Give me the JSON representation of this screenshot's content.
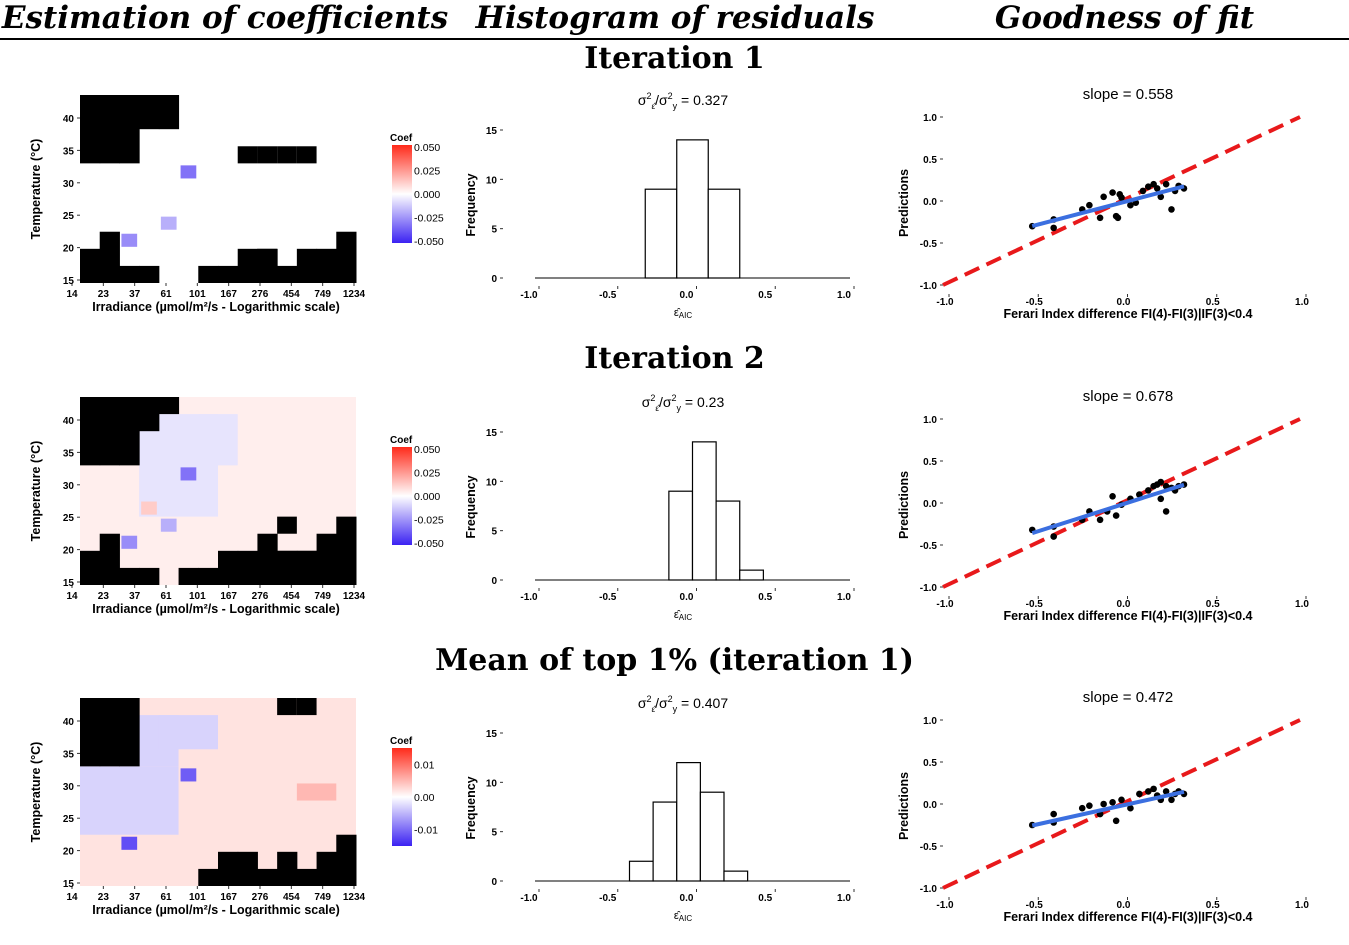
{
  "headers": [
    "Estimation of coefficients",
    "Histogram of residuals",
    "Goodness of fit"
  ],
  "colors": {
    "neg": "#3b22f2",
    "pos": "#ff2a1a",
    "zero": "#ffffff",
    "masked": "#000000",
    "fit_line": "#3b6fe0",
    "ref_line": "#e8191b",
    "points": "#000000",
    "points_on_line": "#ff2020"
  },
  "rows": [
    {
      "title": "Iteration 1",
      "heatmap": {
        "ylabel": "Temperature (°C)",
        "xlabel": "Irradiance (µmol/m²/s - Logarithmic scale)",
        "xticks": [
          "14",
          "23",
          "37",
          "61",
          "101",
          "167",
          "276",
          "454",
          "749",
          "1234"
        ],
        "yticks": [
          "15",
          "20",
          "25",
          "30",
          "35",
          "40"
        ],
        "legend_title": "Coef",
        "legend_ticks": [
          "0.050",
          "0.025",
          "0.000",
          "-0.025",
          "-0.050"
        ],
        "legend_range": [
          -0.05,
          0.05
        ],
        "cols": 14,
        "rows": 11,
        "mask_top": [
          4,
          4,
          4,
          2,
          2,
          0,
          0,
          0,
          0,
          0,
          0,
          0,
          0,
          0
        ],
        "mask_bottom": [
          2,
          3,
          1,
          1,
          0,
          0,
          1,
          1,
          2,
          2,
          1,
          2,
          2,
          3
        ],
        "extra_masked": [
          [
            8,
            7
          ],
          [
            9,
            7
          ],
          [
            10,
            7
          ],
          [
            11,
            7
          ],
          [
            9,
            1
          ]
        ],
        "cells": [
          [
            5,
            6,
            -0.032
          ],
          [
            4,
            3,
            -0.018
          ],
          [
            2,
            2,
            -0.026
          ]
        ]
      },
      "histogram": {
        "title": "σ²ε̂/σ²y = 0.327",
        "title_prefix": "σ",
        "title_value": " = 0.327",
        "ylabel": "Frequency",
        "xlabel": "ε̂AIC",
        "xlim": [
          -1.0,
          1.0
        ],
        "xticks": [
          "-1.0",
          "-0.5",
          "0.0",
          "0.5",
          "1.0"
        ],
        "ylim": [
          0,
          15
        ],
        "yticks": [
          "0",
          "5",
          "10",
          "15"
        ],
        "bins": [
          [
            -0.3,
            -0.1,
            9
          ],
          [
            -0.1,
            0.1,
            14
          ],
          [
            0.1,
            0.3,
            9
          ]
        ]
      },
      "fit": {
        "title": "slope =  0.558",
        "ylabel": "Predictions",
        "xlabel": "Ferari Index difference FI(4)-FI(3)|IF(3)<0.4",
        "xlim": [
          -1.0,
          1.0
        ],
        "xticks": [
          "-1.0",
          "-0.5",
          "0.0",
          "0.5",
          "1.0"
        ],
        "ylim": [
          -1.0,
          1.0
        ],
        "yticks": [
          "-1.0",
          "-0.5",
          "0.0",
          "0.5",
          "1.0"
        ],
        "slope": 0.558,
        "intercept": -0.02,
        "fit_x": [
          -0.5,
          0.35
        ],
        "points": [
          [
            -0.5,
            -0.3
          ],
          [
            -0.38,
            -0.32
          ],
          [
            -0.38,
            -0.22
          ],
          [
            -0.22,
            -0.1
          ],
          [
            -0.18,
            -0.05
          ],
          [
            -0.12,
            -0.2
          ],
          [
            -0.1,
            0.05
          ],
          [
            -0.05,
            0.1
          ],
          [
            -0.03,
            -0.18
          ],
          [
            -0.02,
            -0.2
          ],
          [
            -0.01,
            0.08
          ],
          [
            0.0,
            0.04
          ],
          [
            0.05,
            -0.05
          ],
          [
            0.08,
            -0.02
          ],
          [
            0.12,
            0.12
          ],
          [
            0.15,
            0.17
          ],
          [
            0.18,
            0.2
          ],
          [
            0.2,
            0.15
          ],
          [
            0.22,
            0.05
          ],
          [
            0.25,
            0.2
          ],
          [
            0.28,
            -0.1
          ],
          [
            0.3,
            0.12
          ],
          [
            0.32,
            0.18
          ],
          [
            0.35,
            0.15
          ]
        ]
      }
    },
    {
      "title": "Iteration 2",
      "heatmap": {
        "ylabel": "Temperature (°C)",
        "xlabel": "Irradiance (µmol/m²/s - Logarithmic scale)",
        "xticks": [
          "14",
          "23",
          "37",
          "61",
          "101",
          "167",
          "276",
          "454",
          "749",
          "1234"
        ],
        "yticks": [
          "15",
          "20",
          "25",
          "30",
          "35",
          "40"
        ],
        "legend_title": "Coef",
        "legend_ticks": [
          "0.050",
          "0.025",
          "0.000",
          "-0.025",
          "-0.050"
        ],
        "legend_range": [
          -0.05,
          0.05
        ],
        "cols": 14,
        "rows": 11,
        "mask_top": [
          4,
          4,
          4,
          2,
          1,
          0,
          0,
          0,
          0,
          0,
          0,
          0,
          0,
          0
        ],
        "mask_bottom": [
          2,
          3,
          1,
          1,
          0,
          1,
          1,
          2,
          2,
          3,
          2,
          2,
          3,
          4
        ],
        "extra_masked": [
          [
            9,
            1
          ],
          [
            10,
            1
          ],
          [
            11,
            1
          ],
          [
            12,
            1
          ],
          [
            10,
            3
          ],
          [
            13,
            0
          ]
        ],
        "cells": [
          [
            5,
            6,
            -0.032
          ],
          [
            4,
            3,
            -0.018
          ],
          [
            2,
            2,
            -0.026
          ],
          [
            3,
            4,
            0.012
          ]
        ],
        "bg_coef": 0.004,
        "region_neg": [
          [
            3,
            4,
            7,
            10
          ],
          [
            6,
            7,
            8,
            10
          ]
        ],
        "region_neg_value": -0.006
      },
      "histogram": {
        "title": "σ²ε̂/σ²y = 0.23",
        "title_prefix": "σ",
        "title_value": " = 0.23",
        "ylabel": "Frequency",
        "xlabel": "ε̂AIC",
        "xlim": [
          -1.0,
          1.0
        ],
        "xticks": [
          "-1.0",
          "-0.5",
          "0.0",
          "0.5",
          "1.0"
        ],
        "ylim": [
          0,
          15
        ],
        "yticks": [
          "0",
          "5",
          "10",
          "15"
        ],
        "bins": [
          [
            -0.15,
            0.0,
            9
          ],
          [
            0.0,
            0.15,
            14
          ],
          [
            0.15,
            0.3,
            8
          ],
          [
            0.3,
            0.45,
            1
          ]
        ]
      },
      "fit": {
        "title": "slope =  0.678",
        "ylabel": "Predictions",
        "xlabel": "Ferari Index difference FI(4)-FI(3)|IF(3)<0.4",
        "xlim": [
          -1.0,
          1.0
        ],
        "xticks": [
          "-1.0",
          "-0.5",
          "0.0",
          "0.5",
          "1.0"
        ],
        "ylim": [
          -1.0,
          1.0
        ],
        "yticks": [
          "-1.0",
          "-0.5",
          "0.0",
          "0.5",
          "1.0"
        ],
        "slope": 0.678,
        "intercept": -0.02,
        "fit_x": [
          -0.5,
          0.35
        ],
        "points": [
          [
            -0.5,
            -0.32
          ],
          [
            -0.38,
            -0.28
          ],
          [
            -0.38,
            -0.4
          ],
          [
            -0.22,
            -0.2
          ],
          [
            -0.18,
            -0.1
          ],
          [
            -0.12,
            -0.2
          ],
          [
            -0.08,
            -0.1
          ],
          [
            -0.05,
            0.08
          ],
          [
            -0.03,
            -0.15
          ],
          [
            0.0,
            -0.02
          ],
          [
            0.05,
            0.05
          ],
          [
            0.1,
            0.1
          ],
          [
            0.15,
            0.15
          ],
          [
            0.18,
            0.2
          ],
          [
            0.2,
            0.22
          ],
          [
            0.22,
            0.25
          ],
          [
            0.22,
            0.05
          ],
          [
            0.25,
            0.2
          ],
          [
            0.25,
            -0.1
          ],
          [
            0.28,
            0.18
          ],
          [
            0.3,
            0.15
          ],
          [
            0.32,
            0.2
          ],
          [
            0.35,
            0.22
          ]
        ]
      }
    },
    {
      "title": "Mean of top 1% (iteration 1)",
      "heatmap": {
        "ylabel": "Temperature (°C)",
        "xlabel": "Irradiance (µmol/m²/s - Logarithmic scale)",
        "xticks": [
          "14",
          "23",
          "37",
          "61",
          "101",
          "167",
          "276",
          "454",
          "749",
          "1234"
        ],
        "yticks": [
          "15",
          "20",
          "25",
          "30",
          "35",
          "40"
        ],
        "legend_title": "Coef",
        "legend_ticks": [
          "0.01",
          "0.00",
          "-0.01"
        ],
        "legend_range": [
          -0.015,
          0.015
        ],
        "cols": 14,
        "rows": 11,
        "mask_top": [
          4,
          4,
          4,
          0,
          0,
          0,
          0,
          0,
          0,
          0,
          0,
          0,
          0,
          0
        ],
        "mask_bottom": [
          0,
          0,
          0,
          0,
          0,
          0,
          1,
          2,
          2,
          1,
          2,
          1,
          2,
          3
        ],
        "extra_masked": [
          [
            11,
            10
          ],
          [
            10,
            10
          ]
        ],
        "cells": [
          [
            5,
            6,
            -0.011
          ],
          [
            2,
            2,
            -0.012
          ]
        ],
        "bg_coef": 0.002,
        "region_neg": [
          [
            0,
            3,
            5,
            7
          ],
          [
            3,
            7,
            5,
            10
          ],
          [
            4,
            8,
            7,
            10
          ]
        ],
        "region_neg_value": -0.003,
        "region_pos": [
          [
            11,
            5,
            13,
            6
          ]
        ],
        "region_pos_value": 0.005
      },
      "histogram": {
        "title": "σ²ε̂/σ²y = 0.407",
        "title_prefix": "σ",
        "title_value": " = 0.407",
        "ylabel": "Frequency",
        "xlabel": "ε̂AIC",
        "xlim": [
          -1.0,
          1.0
        ],
        "xticks": [
          "-1.0",
          "-0.5",
          "0.0",
          "0.5",
          "1.0"
        ],
        "ylim": [
          0,
          15
        ],
        "yticks": [
          "0",
          "5",
          "10",
          "15"
        ],
        "bins": [
          [
            -0.4,
            -0.25,
            2
          ],
          [
            -0.25,
            -0.1,
            8
          ],
          [
            -0.1,
            0.05,
            12
          ],
          [
            0.05,
            0.2,
            9
          ],
          [
            0.2,
            0.35,
            1
          ]
        ]
      },
      "fit": {
        "title": "slope =  0.472",
        "ylabel": "Predictions",
        "xlabel": "Ferari Index difference FI(4)-FI(3)|IF(3)<0.4",
        "xlim": [
          -1.0,
          1.0
        ],
        "xticks": [
          "-1.0",
          "-0.5",
          "0.0",
          "0.5",
          "1.0"
        ],
        "ylim": [
          -1.0,
          1.0
        ],
        "yticks": [
          "-1.0",
          "-0.5",
          "0.0",
          "0.5",
          "1.0"
        ],
        "slope": 0.472,
        "intercept": -0.02,
        "fit_x": [
          -0.5,
          0.35
        ],
        "points": [
          [
            -0.5,
            -0.25
          ],
          [
            -0.38,
            -0.12
          ],
          [
            -0.38,
            -0.22
          ],
          [
            -0.22,
            -0.05
          ],
          [
            -0.18,
            -0.02
          ],
          [
            -0.12,
            -0.12
          ],
          [
            -0.1,
            0.0
          ],
          [
            -0.05,
            0.02
          ],
          [
            -0.03,
            -0.2
          ],
          [
            0.0,
            0.05
          ],
          [
            0.05,
            -0.05
          ],
          [
            0.1,
            0.12
          ],
          [
            0.15,
            0.15
          ],
          [
            0.18,
            0.18
          ],
          [
            0.2,
            0.1
          ],
          [
            0.22,
            0.05
          ],
          [
            0.25,
            0.15
          ],
          [
            0.28,
            0.05
          ],
          [
            0.3,
            0.12
          ],
          [
            0.32,
            0.15
          ],
          [
            0.35,
            0.12
          ]
        ]
      }
    }
  ],
  "chart_data": [
    {
      "type": "heatmap",
      "title": "Iteration 1",
      "xlabel": "Irradiance (µmol/m²/s - Logarithmic scale)",
      "ylabel": "Temperature (°C)",
      "x_ticks": [
        "14",
        "23",
        "37",
        "61",
        "101",
        "167",
        "276",
        "454",
        "749",
        "1234"
      ],
      "ylim": [
        15,
        43
      ],
      "legend": "Coef",
      "range": [
        -0.05,
        0.05
      ]
    },
    {
      "type": "bar",
      "title": "σ²ε̂/σ²y = 0.327",
      "xlabel": "ε̂AIC",
      "ylabel": "Frequency",
      "x": [
        -0.2,
        0.0,
        0.2
      ],
      "values": [
        9,
        14,
        9
      ],
      "xlim": [
        -1,
        1
      ],
      "ylim": [
        0,
        15
      ]
    },
    {
      "type": "scatter",
      "title": "slope =  0.558",
      "xlabel": "Ferari Index difference FI(4)-FI(3)|IF(3)<0.4",
      "ylabel": "Predictions",
      "xlim": [
        -1,
        1
      ],
      "ylim": [
        -1,
        1
      ]
    },
    {
      "type": "heatmap",
      "title": "Iteration 2",
      "xlabel": "Irradiance (µmol/m²/s - Logarithmic scale)",
      "ylabel": "Temperature (°C)",
      "legend": "Coef",
      "range": [
        -0.05,
        0.05
      ]
    },
    {
      "type": "bar",
      "title": "σ²ε̂/σ²y = 0.23",
      "xlabel": "ε̂AIC",
      "ylabel": "Frequency",
      "x": [
        -0.075,
        0.075,
        0.225,
        0.375
      ],
      "values": [
        9,
        14,
        8,
        1
      ],
      "xlim": [
        -1,
        1
      ],
      "ylim": [
        0,
        15
      ]
    },
    {
      "type": "scatter",
      "title": "slope =  0.678",
      "xlabel": "Ferari Index difference FI(4)-FI(3)|IF(3)<0.4",
      "ylabel": "Predictions",
      "xlim": [
        -1,
        1
      ],
      "ylim": [
        -1,
        1
      ]
    },
    {
      "type": "heatmap",
      "title": "Mean of top 1% (iteration 1)",
      "xlabel": "Irradiance (µmol/m²/s - Logarithmic scale)",
      "ylabel": "Temperature (°C)",
      "legend": "Coef",
      "range": [
        -0.015,
        0.015
      ]
    },
    {
      "type": "bar",
      "title": "σ²ε̂/σ²y = 0.407",
      "xlabel": "ε̂AIC",
      "ylabel": "Frequency",
      "x": [
        -0.325,
        -0.175,
        -0.025,
        0.125,
        0.275
      ],
      "values": [
        2,
        8,
        12,
        9,
        1
      ],
      "xlim": [
        -1,
        1
      ],
      "ylim": [
        0,
        15
      ]
    },
    {
      "type": "scatter",
      "title": "slope =  0.472",
      "xlabel": "Ferari Index difference FI(4)-FI(3)|IF(3)<0.4",
      "ylabel": "Predictions",
      "xlim": [
        -1,
        1
      ],
      "ylim": [
        -1,
        1
      ]
    }
  ]
}
